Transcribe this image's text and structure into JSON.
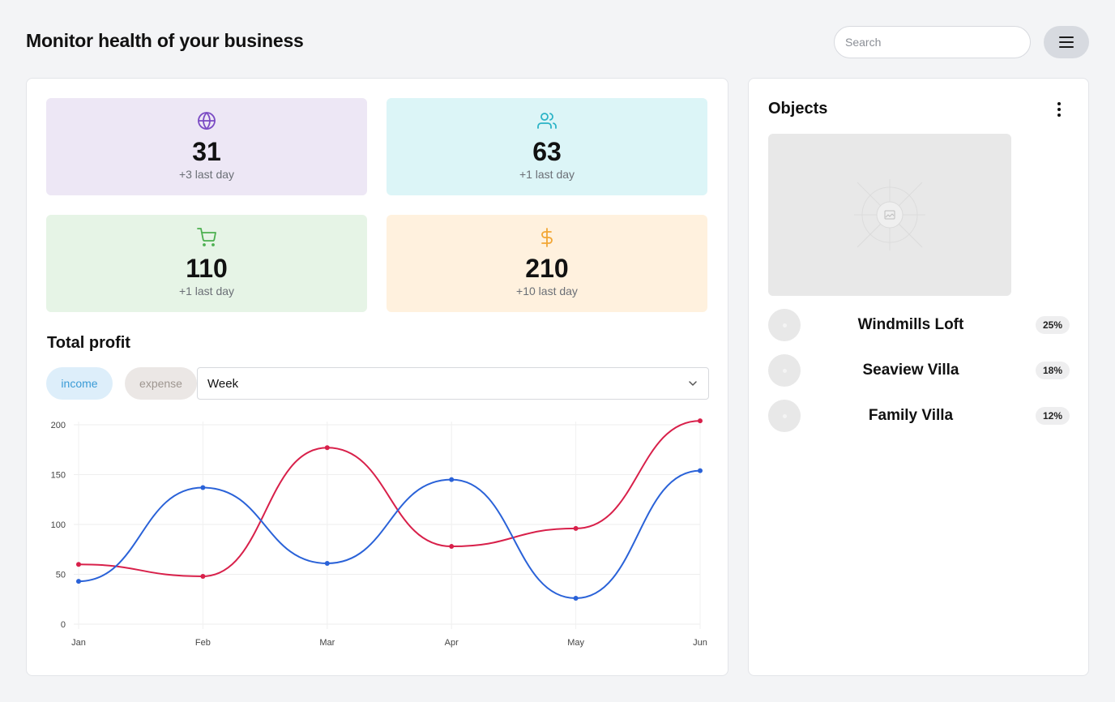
{
  "header": {
    "title": "Monitor health of your business",
    "search_placeholder": "Search"
  },
  "stats": [
    {
      "icon": "globe-icon",
      "value": "31",
      "sub": "+3 last day",
      "bg": "#ede7f5",
      "color": "#7b4bc4"
    },
    {
      "icon": "users-icon",
      "value": "63",
      "sub": "+1 last day",
      "bg": "#dcf5f7",
      "color": "#2ab3c6"
    },
    {
      "icon": "cart-icon",
      "value": "110",
      "sub": "+1 last day",
      "bg": "#e6f4e6",
      "color": "#4cb050"
    },
    {
      "icon": "dollar-icon",
      "value": "210",
      "sub": "+10 last day",
      "bg": "#fff1de",
      "color": "#f2a634"
    }
  ],
  "profit": {
    "title": "Total profit",
    "income_label": "income",
    "expense_label": "expense",
    "period": "Week"
  },
  "chart_data": {
    "type": "line",
    "categories": [
      "Jan",
      "Feb",
      "Mar",
      "Apr",
      "May",
      "Jun"
    ],
    "ylim": [
      0,
      200
    ],
    "yticks": [
      0,
      50,
      100,
      150,
      200
    ],
    "grid": true,
    "series": [
      {
        "values": [
          60,
          48,
          177,
          78,
          96,
          204
        ],
        "color": "#d8204a"
      },
      {
        "values": [
          43,
          137,
          61,
          145,
          26,
          154
        ],
        "color": "#2a62d8"
      }
    ]
  },
  "objects": {
    "title": "Objects",
    "items": [
      {
        "name": "Windmills Loft",
        "percent": "25%"
      },
      {
        "name": "Seaview Villa",
        "percent": "18%"
      },
      {
        "name": "Family Villa",
        "percent": "12%"
      }
    ]
  }
}
